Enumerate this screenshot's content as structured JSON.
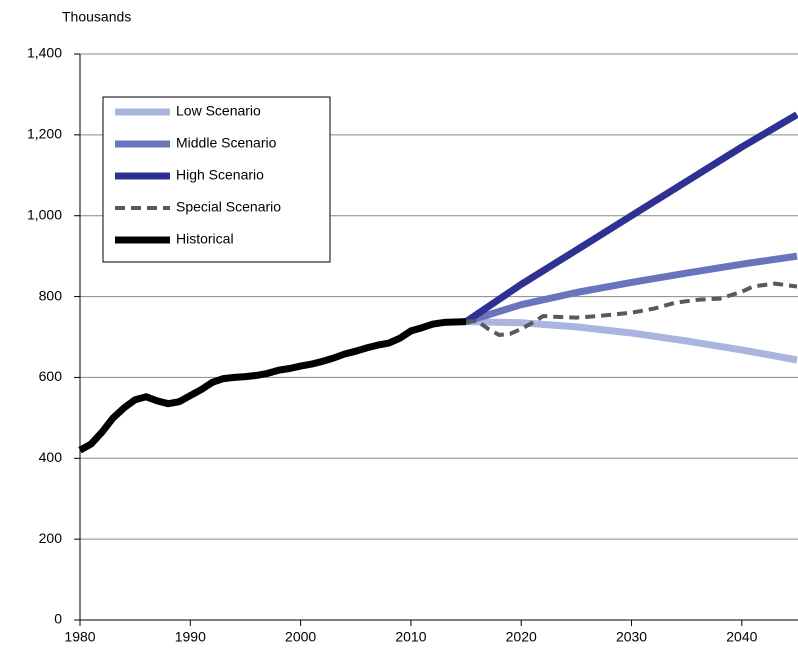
{
  "chart_data": {
    "type": "line",
    "y_axis_label": "Thousands",
    "xlim": [
      1980,
      2045
    ],
    "xticks": [
      1980,
      1990,
      2000,
      2010,
      2020,
      2030,
      2040
    ],
    "ylim": [
      0,
      1400
    ],
    "yticks": [
      0,
      200,
      400,
      600,
      800,
      {
        "value": 1000,
        "label": "1,000"
      },
      {
        "value": 1200,
        "label": "1,200"
      },
      {
        "value": 1400,
        "label": "1,400"
      }
    ],
    "grid": true,
    "legend": "upper left",
    "series": [
      {
        "name": "Low Scenario",
        "color": "#a9b4df",
        "dashed": false,
        "x": [
          2015,
          2020,
          2025,
          2030,
          2035,
          2040,
          2045
        ],
        "values": [
          738,
          735,
          725,
          710,
          690,
          668,
          643
        ]
      },
      {
        "name": "Middle Scenario",
        "color": "#6a74bd",
        "dashed": false,
        "x": [
          2015,
          2020,
          2025,
          2030,
          2035,
          2040,
          2045
        ],
        "values": [
          738,
          780,
          810,
          835,
          858,
          880,
          900
        ]
      },
      {
        "name": "High Scenario",
        "color": "#2e3192",
        "dashed": false,
        "x": [
          2015,
          2020,
          2025,
          2030,
          2035,
          2040,
          2045
        ],
        "values": [
          738,
          830,
          915,
          1000,
          1085,
          1170,
          1250
        ]
      },
      {
        "name": "Special Scenario",
        "color": "#595959",
        "dashed": true,
        "x": [
          2015,
          2016,
          2017,
          2018,
          2019,
          2020,
          2021,
          2022,
          2023,
          2025,
          2027,
          2030,
          2032,
          2034,
          2036,
          2038,
          2040,
          2041,
          2043,
          2045
        ],
        "values": [
          738,
          740,
          720,
          705,
          708,
          720,
          735,
          752,
          750,
          748,
          752,
          760,
          770,
          785,
          792,
          795,
          812,
          825,
          832,
          825
        ]
      },
      {
        "name": "Historical",
        "color": "#000000",
        "dashed": false,
        "x": [
          1980,
          1981,
          1982,
          1983,
          1984,
          1985,
          1986,
          1987,
          1988,
          1989,
          1990,
          1991,
          1992,
          1993,
          1994,
          1995,
          1996,
          1997,
          1998,
          1999,
          2000,
          2001,
          2002,
          2003,
          2004,
          2005,
          2006,
          2007,
          2008,
          2009,
          2010,
          2011,
          2012,
          2013,
          2014,
          2015
        ],
        "values": [
          420,
          435,
          465,
          500,
          525,
          545,
          552,
          542,
          535,
          540,
          555,
          570,
          588,
          597,
          600,
          602,
          605,
          610,
          618,
          622,
          628,
          633,
          640,
          648,
          658,
          665,
          673,
          680,
          685,
          697,
          715,
          723,
          732,
          736,
          737,
          738
        ]
      }
    ]
  }
}
